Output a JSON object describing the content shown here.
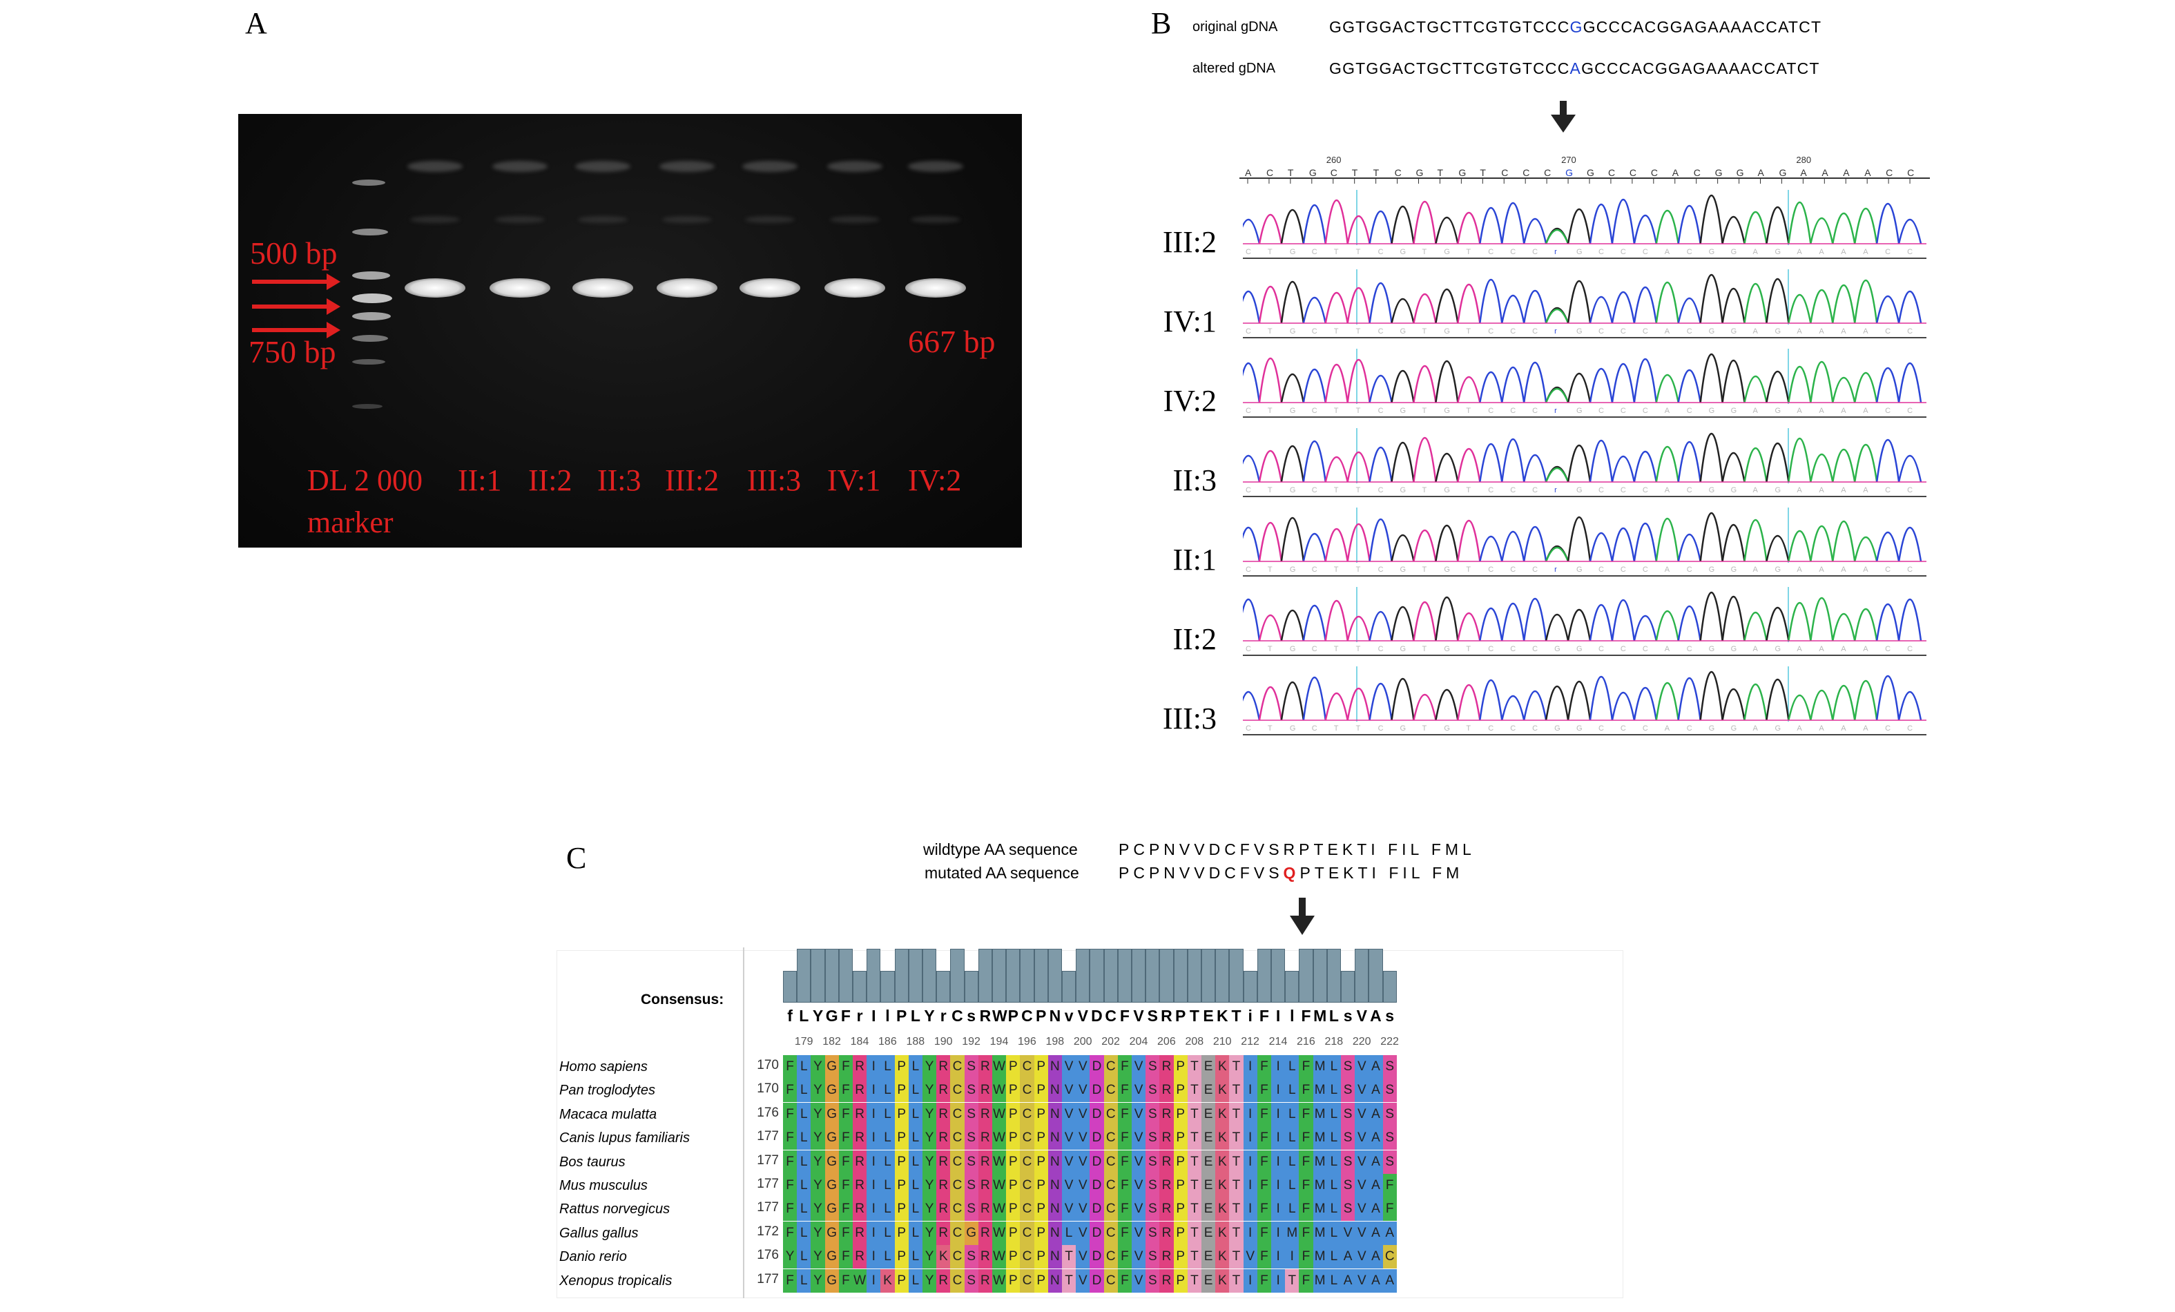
{
  "panel_a": {
    "letter": "A",
    "marker_labels": {
      "top": "500 bp",
      "bottom": "750 bp",
      "product": "667 bp"
    },
    "lanes": [
      "DL 2 000",
      "II:1",
      "II:2",
      "II:3",
      "III:2",
      "III:3",
      "IV:1",
      "IV:2"
    ],
    "marker_word": "marker"
  },
  "panel_b": {
    "letter": "B",
    "original_label": "original gDNA",
    "altered_label": "altered gDNA",
    "original_seq_pre": "GGTGGACTGCTTCGTGTCCC",
    "original_base": "G",
    "original_seq_post": "GCCCACGGAGAAAACCATCT",
    "altered_seq_pre": "GGTGGACTGCTTCGTGTCCC",
    "altered_base": "A",
    "altered_seq_post": "GCCCACGGAGAAAACCATCT",
    "positions": [
      "260",
      "270",
      "280"
    ],
    "ref_bases": [
      "A",
      "C",
      "T",
      "G",
      "C",
      "T",
      "T",
      "C",
      "G",
      "T",
      "G",
      "T",
      "C",
      "C",
      "C",
      "G",
      "G",
      "C",
      "C",
      "C",
      "A",
      "C",
      "G",
      "G",
      "A",
      "G",
      "A",
      "A",
      "A",
      "A",
      "C",
      "C"
    ],
    "samples": [
      "III:2",
      "IV:1",
      "IV:2",
      "II:3",
      "II:1",
      "II:2",
      "III:3"
    ]
  },
  "panel_c": {
    "letter": "C",
    "wildtype_label": "wildtype AA sequence",
    "wildtype_seq": "PCPNVVDCFVSRPTEKTI FIL FML",
    "mutated_label": "mutated AA sequence",
    "mutated_pre": "PCPNVVDCFVS",
    "mutated_base": "Q",
    "mutated_post": "PTEKTI FIL FM",
    "consensus_label": "Consensus:",
    "consensus": [
      "f",
      "L",
      "Y",
      "G",
      "F",
      "r",
      "I",
      "l",
      "P",
      "L",
      "Y",
      "r",
      "C",
      "s",
      "R",
      "W",
      "P",
      "C",
      "P",
      "N",
      "v",
      "V",
      "D",
      "C",
      "F",
      "V",
      "S",
      "R",
      "P",
      "T",
      "E",
      "K",
      "T",
      "i",
      "F",
      "I",
      "l",
      "F",
      "M",
      "L",
      "s",
      "V",
      "A",
      "s"
    ],
    "ticks": [
      "179",
      "182",
      "184",
      "186",
      "188",
      "190",
      "192",
      "194",
      "196",
      "198",
      "200",
      "202",
      "204",
      "206",
      "208",
      "210",
      "212",
      "214",
      "216",
      "218",
      "220",
      "222"
    ],
    "rows": [
      {
        "species": "Homo sapiens",
        "start": "170",
        "seq": "FLYGFRILPLYRCSRWPCPNVVDCFVSRPTEKTIFILFMLSVAS"
      },
      {
        "species": "Pan troglodytes",
        "start": "170",
        "seq": "FLYGFRILPLYRCSRWPCPNVVDCFVSRPTEKTIFILFMLSVAS"
      },
      {
        "species": "Macaca mulatta",
        "start": "176",
        "seq": "FLYGFRILPLYRCSRWPCPNVVDCFVSRPTEKTIFILFMLSVAS"
      },
      {
        "species": "Canis lupus familiaris",
        "start": "177",
        "seq": "FLYGFRILPLYRCSRWPCPNVVDCFVSRPTEKTIFILFMLSVAS"
      },
      {
        "species": "Bos taurus",
        "start": "177",
        "seq": "FLYGFRILPLYRCSRWPCPNVVDCFVSRPTEKTIFILFMLSVAS"
      },
      {
        "species": "Mus musculus",
        "start": "177",
        "seq": "FLYGFRILPLYRCSRWPCPNVVDCFVSRPTEKTIFILFMLSVAF"
      },
      {
        "species": "Rattus norvegicus",
        "start": "177",
        "seq": "FLYGFRILPLYRCSRWPCPNVVDCFVSRPTEKTIFILFMLSVAF"
      },
      {
        "species": "Gallus gallus",
        "start": "172",
        "seq": "FLYGFRILPLYRCGRWPCPNLVDCFVSRPTEKTIFIMFMLVVAA"
      },
      {
        "species": "Danio rerio",
        "start": "176",
        "seq": "YLYGFRILPLYKCSRWPCPNTVDCFVSRPTEKTVFIIFMLAVAC"
      },
      {
        "species": "Xenopus tropicalis",
        "start": "177",
        "seq": "FLYGFWIKPLYRCSRWPCPNTVDCFVSRPTEKTIFITFMLAVAA"
      }
    ],
    "aa_colors": {
      "F": "#3cb44b",
      "L": "#4a90d9",
      "Y": "#3cb44b",
      "G": "#e0a040",
      "R": "#e04080",
      "I": "#4a90d9",
      "P": "#e8e030",
      "C": "#d4c040",
      "S": "#e050a0",
      "W": "#3cb44b",
      "N": "#a040c0",
      "V": "#4a90d9",
      "D": "#d040c0",
      "T": "#e8a0c0",
      "E": "#a0a0a0",
      "K": "#e06080",
      "M": "#4a90d9",
      "A": "#4a90d9",
      "H": "#30a0a0",
      "Q": "#c060c0"
    }
  }
}
